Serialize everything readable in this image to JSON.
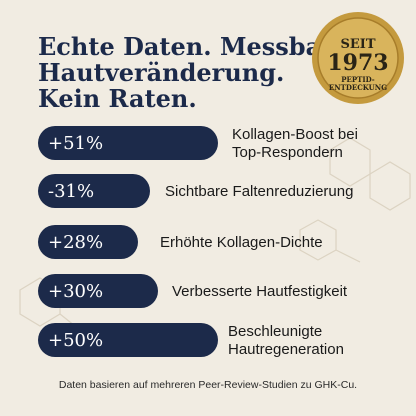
{
  "header": {
    "title_lines": [
      "Echte Daten. Messbare",
      "Hautveränderung.",
      "Kein Raten."
    ]
  },
  "badge": {
    "lines": [
      "SEIT",
      "1973",
      "PEPTID-",
      "ENTDECKUNG"
    ]
  },
  "stats": [
    {
      "value": "+51%",
      "label_lines": [
        "Kollagen-Boost bei",
        "Top-Respondern"
      ]
    },
    {
      "value": "-31%",
      "label_lines": [
        "Sichtbare Faltenreduzierung"
      ]
    },
    {
      "value": "+28%",
      "label_lines": [
        "Erhöhte Kollagen-Dichte"
      ]
    },
    {
      "value": "+30%",
      "label_lines": [
        "Verbesserte Hautfestigkeit"
      ]
    },
    {
      "value": "+50%",
      "label_lines": [
        "Beschleunigte",
        "Hautregeneration"
      ]
    }
  ],
  "footer": "Daten basieren auf mehreren Peer-Review-Studien zu GHK-Cu."
}
